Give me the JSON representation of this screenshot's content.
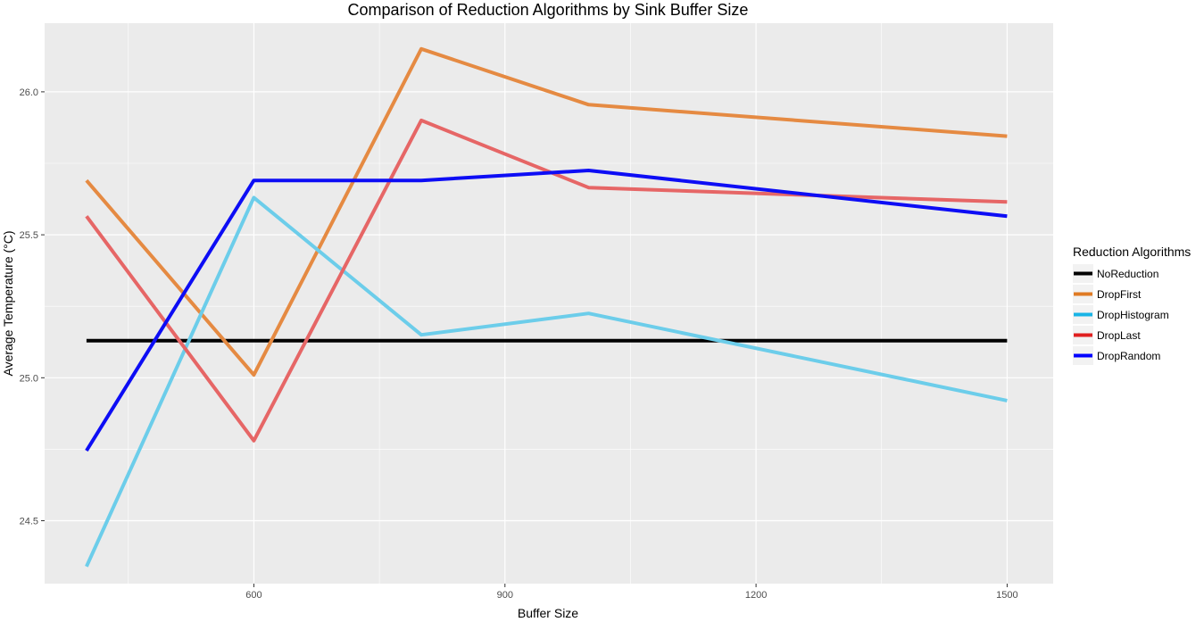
{
  "chart_data": {
    "type": "line",
    "title": "Comparison of Reduction Algorithms by Sink Buffer Size",
    "xlabel": "Buffer Size",
    "ylabel": "Average Temperature (°C)",
    "x": [
      400,
      600,
      800,
      1000,
      1500
    ],
    "xlim": [
      350,
      1555
    ],
    "ylim": [
      24.28,
      26.24
    ],
    "x_ticks": [
      600,
      900,
      1200,
      1500
    ],
    "x_tick_labels": [
      "600",
      "900",
      "1200",
      "1500"
    ],
    "y_ticks": [
      24.5,
      25.0,
      25.5,
      26.0
    ],
    "y_tick_labels": [
      "24.5",
      "25.0",
      "25.5",
      "26.0"
    ],
    "grid": true,
    "legend": {
      "title": "Reduction Algorithms",
      "position": "right"
    },
    "series": [
      {
        "name": "NoReduction",
        "legend_color": "#000000",
        "line_color": "#000000",
        "values": [
          25.13,
          25.13,
          25.13,
          25.13,
          25.13
        ]
      },
      {
        "name": "DropFirst",
        "legend_color": "#e07b24",
        "line_color": "#e58a42",
        "values": [
          25.69,
          25.01,
          26.15,
          25.955,
          25.845
        ]
      },
      {
        "name": "DropHistogram",
        "legend_color": "#19b4e6",
        "line_color": "#6ccdea",
        "values": [
          24.34,
          25.63,
          25.15,
          25.225,
          24.92
        ]
      },
      {
        "name": "DropLast",
        "legend_color": "#e02020",
        "line_color": "#e66666",
        "values": [
          25.565,
          24.78,
          25.9,
          25.665,
          25.615
        ]
      },
      {
        "name": "DropRandom",
        "legend_color": "#0000ff",
        "line_color": "#0d0df5",
        "values": [
          24.745,
          25.69,
          25.69,
          25.725,
          25.565
        ]
      }
    ]
  }
}
